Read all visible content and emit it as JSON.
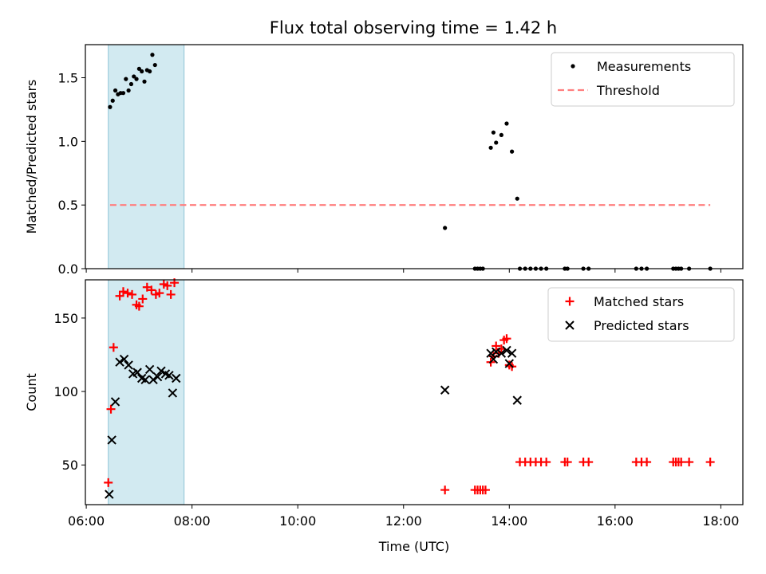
{
  "figure": {
    "title": "Flux total observing time = 1.42 h"
  },
  "chart_data": [
    {
      "type": "scatter",
      "panel": "top",
      "title": "Flux total observing time = 1.42 h",
      "xlabel": "",
      "ylabel": "Matched/Predicted stars",
      "xlim": [
        "05:59",
        "18:25"
      ],
      "ylim": [
        0,
        1.76
      ],
      "yticks": [
        0.0,
        0.5,
        1.0,
        1.5
      ],
      "ytick_labels": [
        "0.0",
        "0.5",
        "1.0",
        "1.5"
      ],
      "grid": false,
      "legend_position": "top-right",
      "shaded_interval": {
        "start": "06:25",
        "end": "07:51",
        "color": "#add8e6"
      },
      "series": [
        {
          "name": "Measurements",
          "kind": "dots",
          "color": "#000000",
          "points": [
            [
              "06:27",
              1.27
            ],
            [
              "06:30",
              1.32
            ],
            [
              "06:33",
              1.4
            ],
            [
              "06:36",
              1.37
            ],
            [
              "06:39",
              1.38
            ],
            [
              "06:42",
              1.38
            ],
            [
              "06:45",
              1.49
            ],
            [
              "06:48",
              1.4
            ],
            [
              "06:51",
              1.45
            ],
            [
              "06:54",
              1.51
            ],
            [
              "06:57",
              1.49
            ],
            [
              "07:00",
              1.57
            ],
            [
              "07:03",
              1.55
            ],
            [
              "07:06",
              1.47
            ],
            [
              "07:09",
              1.56
            ],
            [
              "07:12",
              1.55
            ],
            [
              "07:15",
              1.68
            ],
            [
              "07:18",
              1.6
            ],
            [
              "12:47",
              0.32
            ],
            [
              "13:21",
              0.0
            ],
            [
              "13:24",
              0.0
            ],
            [
              "13:27",
              0.0
            ],
            [
              "13:30",
              0.0
            ],
            [
              "13:39",
              0.95
            ],
            [
              "13:42",
              1.07
            ],
            [
              "13:45",
              0.99
            ],
            [
              "13:51",
              1.05
            ],
            [
              "13:57",
              1.14
            ],
            [
              "14:03",
              0.92
            ],
            [
              "14:09",
              0.55
            ],
            [
              "14:12",
              0.0
            ],
            [
              "14:18",
              0.0
            ],
            [
              "14:24",
              0.0
            ],
            [
              "14:30",
              0.0
            ],
            [
              "14:36",
              0.0
            ],
            [
              "14:42",
              0.0
            ],
            [
              "15:03",
              0.0
            ],
            [
              "15:06",
              0.0
            ],
            [
              "15:24",
              0.0
            ],
            [
              "15:30",
              0.0
            ],
            [
              "16:24",
              0.0
            ],
            [
              "16:30",
              0.0
            ],
            [
              "16:36",
              0.0
            ],
            [
              "17:06",
              0.0
            ],
            [
              "17:09",
              0.0
            ],
            [
              "17:12",
              0.0
            ],
            [
              "17:15",
              0.0
            ],
            [
              "17:24",
              0.0
            ],
            [
              "17:48",
              0.0
            ]
          ]
        },
        {
          "name": "Threshold",
          "kind": "dashed-line",
          "color": "#ff7f7f",
          "points": [
            [
              "06:27",
              0.5
            ],
            [
              "17:48",
              0.5
            ]
          ]
        }
      ]
    },
    {
      "type": "scatter",
      "panel": "bottom",
      "xlabel": "Time (UTC)",
      "ylabel": "Count",
      "xlim": [
        "05:59",
        "18:25"
      ],
      "ylim": [
        23,
        176
      ],
      "yticks": [
        50,
        100,
        150
      ],
      "ytick_labels": [
        "50",
        "100",
        "150"
      ],
      "xticks": [
        "06:00",
        "08:00",
        "10:00",
        "12:00",
        "14:00",
        "16:00",
        "18:00"
      ],
      "xtick_labels": [
        "06:00",
        "08:00",
        "10:00",
        "12:00",
        "14:00",
        "16:00",
        "18:00"
      ],
      "grid": false,
      "legend_position": "top-right",
      "shaded_interval": {
        "start": "06:25",
        "end": "07:51",
        "color": "#add8e6"
      },
      "series": [
        {
          "name": "Matched stars",
          "kind": "plus",
          "color": "#ff0000",
          "points": [
            [
              "06:25",
              38
            ],
            [
              "06:28",
              88
            ],
            [
              "06:31",
              130
            ],
            [
              "06:38",
              165
            ],
            [
              "06:42",
              168
            ],
            [
              "06:47",
              167
            ],
            [
              "06:52",
              166
            ],
            [
              "06:57",
              159
            ],
            [
              "07:00",
              158
            ],
            [
              "07:04",
              163
            ],
            [
              "07:09",
              171
            ],
            [
              "07:14",
              169
            ],
            [
              "07:19",
              166
            ],
            [
              "07:23",
              167
            ],
            [
              "07:28",
              173
            ],
            [
              "07:32",
              172
            ],
            [
              "07:36",
              166
            ],
            [
              "07:40",
              174
            ],
            [
              "12:47",
              33
            ],
            [
              "13:21",
              33
            ],
            [
              "13:24",
              33
            ],
            [
              "13:27",
              33
            ],
            [
              "13:30",
              33
            ],
            [
              "13:33",
              33
            ],
            [
              "13:39",
              120
            ],
            [
              "13:42",
              124
            ],
            [
              "13:45",
              131
            ],
            [
              "13:48",
              126
            ],
            [
              "13:51",
              129
            ],
            [
              "13:54",
              135
            ],
            [
              "13:57",
              136
            ],
            [
              "14:00",
              118
            ],
            [
              "14:03",
              117
            ],
            [
              "14:12",
              52
            ],
            [
              "14:18",
              52
            ],
            [
              "14:24",
              52
            ],
            [
              "14:30",
              52
            ],
            [
              "14:36",
              52
            ],
            [
              "14:42",
              52
            ],
            [
              "15:03",
              52
            ],
            [
              "15:06",
              52
            ],
            [
              "15:24",
              52
            ],
            [
              "15:30",
              52
            ],
            [
              "16:24",
              52
            ],
            [
              "16:30",
              52
            ],
            [
              "16:36",
              52
            ],
            [
              "17:06",
              52
            ],
            [
              "17:09",
              52
            ],
            [
              "17:12",
              52
            ],
            [
              "17:15",
              52
            ],
            [
              "17:24",
              52
            ],
            [
              "17:48",
              52
            ]
          ]
        },
        {
          "name": "Predicted stars",
          "kind": "x",
          "color": "#000000",
          "points": [
            [
              "06:26",
              30
            ],
            [
              "06:29",
              67
            ],
            [
              "06:33",
              93
            ],
            [
              "06:38",
              120
            ],
            [
              "06:43",
              122
            ],
            [
              "06:48",
              118
            ],
            [
              "06:53",
              112
            ],
            [
              "06:58",
              113
            ],
            [
              "07:03",
              109
            ],
            [
              "07:07",
              108
            ],
            [
              "07:12",
              115
            ],
            [
              "07:16",
              108
            ],
            [
              "07:21",
              110
            ],
            [
              "07:25",
              114
            ],
            [
              "07:30",
              112
            ],
            [
              "07:34",
              111
            ],
            [
              "07:38",
              99
            ],
            [
              "07:42",
              109
            ],
            [
              "12:47",
              101
            ],
            [
              "13:39",
              126
            ],
            [
              "13:42",
              122
            ],
            [
              "13:45",
              127
            ],
            [
              "13:51",
              126
            ],
            [
              "13:57",
              128
            ],
            [
              "14:00",
              119
            ],
            [
              "14:03",
              126
            ],
            [
              "14:09",
              94
            ]
          ]
        }
      ]
    }
  ]
}
